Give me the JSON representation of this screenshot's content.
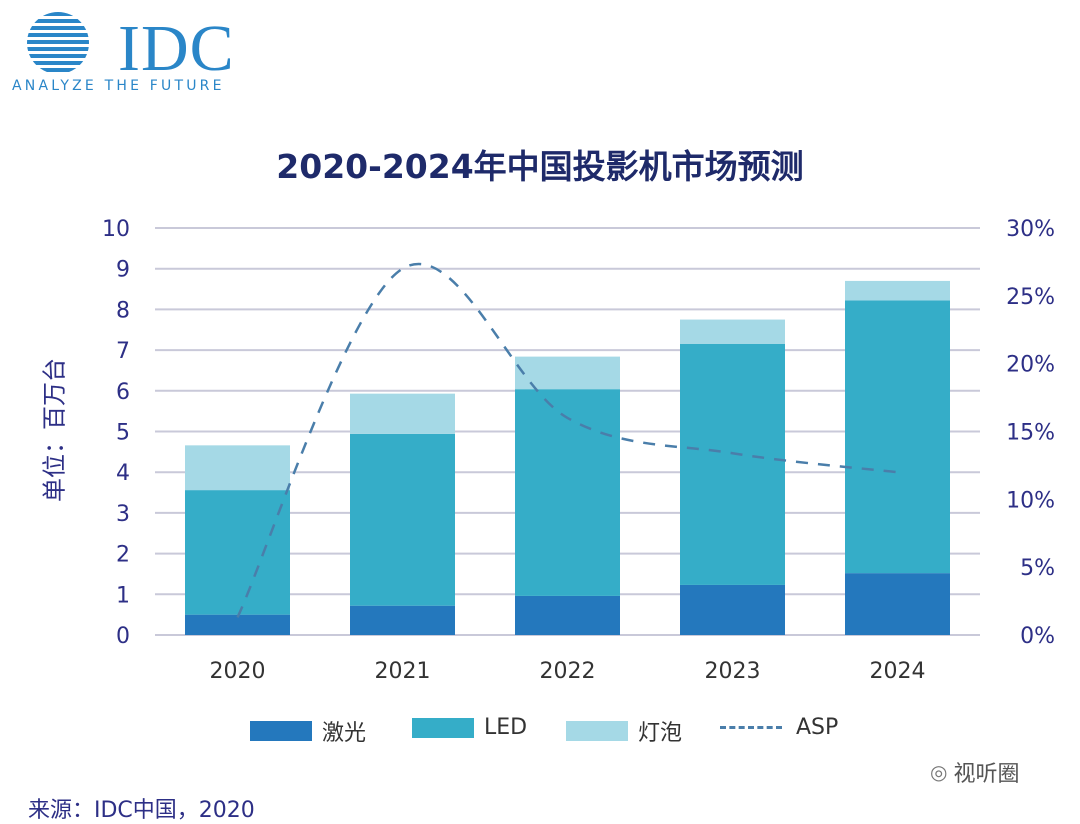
{
  "logo": {
    "name": "IDC",
    "tagline": "ANALYZE THE FUTURE"
  },
  "watermark": "视听圈",
  "source": "来源：IDC中国，2020",
  "colors": {
    "laser": "#2478bd",
    "led": "#35adc8",
    "bulb": "#a5d9e6",
    "asp": "#4a7eaa",
    "title": "#1e2a6a",
    "axis_text": "#2d2f86",
    "grid": "#c9c9d9"
  },
  "chart_data": {
    "type": "bar",
    "stacked": true,
    "title": "2020-2024年中国投影机市场预测",
    "ylabel": "单位：百万台",
    "categories": [
      "2020",
      "2021",
      "2022",
      "2023",
      "2024"
    ],
    "ylim": [
      0,
      10
    ],
    "yticks": [
      "0",
      "1",
      "2",
      "3",
      "4",
      "5",
      "6",
      "7",
      "8",
      "9",
      "10"
    ],
    "y2lim": [
      0,
      30
    ],
    "y2ticks": [
      "0%",
      "5%",
      "10%",
      "15%",
      "20%",
      "25%",
      "30%"
    ],
    "grid": true,
    "legend_position": "bottom",
    "series": [
      {
        "name": "激光",
        "type": "bar",
        "values": [
          0.5,
          0.72,
          0.96,
          1.23,
          1.52
        ]
      },
      {
        "name": "LED",
        "type": "bar",
        "values": [
          3.06,
          4.22,
          5.08,
          5.92,
          6.7
        ]
      },
      {
        "name": "灯泡",
        "type": "bar",
        "values": [
          1.1,
          0.99,
          0.8,
          0.6,
          0.48
        ]
      },
      {
        "name": "ASP",
        "type": "line",
        "style": "dashed",
        "axis": "right",
        "values": [
          1.3,
          27,
          16,
          13.4,
          12
        ]
      }
    ]
  }
}
